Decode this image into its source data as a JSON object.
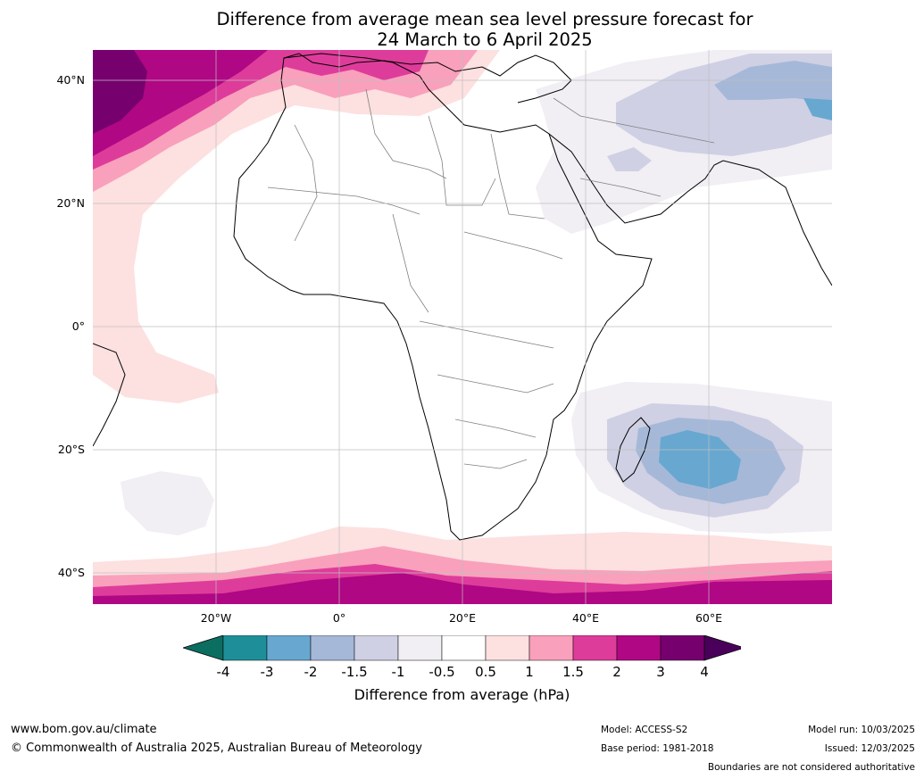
{
  "title_line1": "Difference from average mean sea level pressure forecast for",
  "title_line2": "24 March to 6 April 2025",
  "lat_labels": [
    "40°N",
    "20°N",
    "0°",
    "20°S",
    "40°S"
  ],
  "lon_labels": [
    "20°W",
    "0°",
    "20°E",
    "40°E",
    "60°E"
  ],
  "colorbar": {
    "ticks": [
      "-4",
      "-3",
      "-2",
      "-1.5",
      "-1",
      "-0.5",
      "0.5",
      "1",
      "1.5",
      "2",
      "3",
      "4"
    ],
    "colors": [
      "#1e8f98",
      "#68a8d0",
      "#a6b8d8",
      "#cfd0e4",
      "#f1eef4",
      "#ffffff",
      "#fde0e0",
      "#f9a0bc",
      "#de3c9a",
      "#b00784",
      "#77006f"
    ],
    "under_color": "#0b6e60",
    "over_color": "#4a005a",
    "label": "Difference from average (hPa)"
  },
  "footer": {
    "site": "www.bom.gov.au/climate",
    "copyright": "© Commonwealth of Australia 2025, Australian Bureau of Meteorology",
    "model": "Model: ACCESS-S2",
    "base_period": "Base period: 1981-2018",
    "model_run": "Model run: 10/03/2025",
    "issued": "Issued: 12/03/2025",
    "disclaimer": "Boundaries are not considered authoritative"
  }
}
